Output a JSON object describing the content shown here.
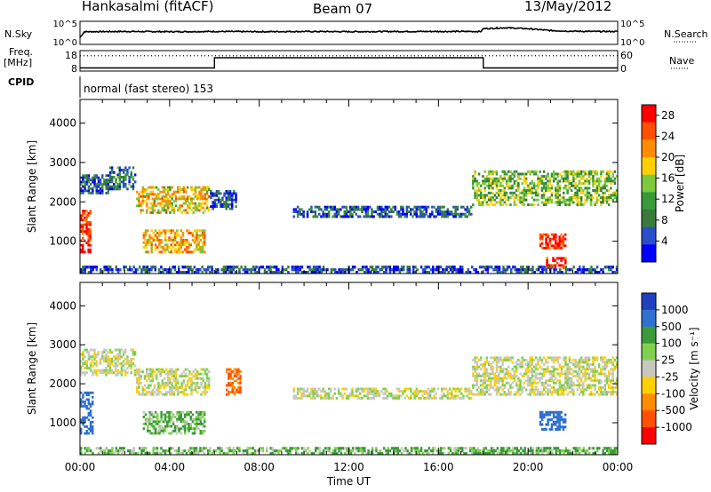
{
  "header": {
    "station": "Hankasalmi (fitACF)",
    "beam": "Beam 07",
    "date": "13/May/2012"
  },
  "left_labels": {
    "nsky": "N.Sky",
    "freq": "Freq.",
    "freq_unit": "[MHz]",
    "cpid": "CPID"
  },
  "right_labels": {
    "nsearch": "N.Search",
    "nave": "Nave"
  },
  "cpid_text": "normal (fast stereo) 153",
  "colors": {
    "frame": "#000000",
    "scatter_power": [
      "#0000ff",
      "#2a4fc8",
      "#3a7a3a",
      "#3a9a3a",
      "#7ec83c",
      "#ffd000",
      "#ff8c00",
      "#ff5000",
      "#ff0000"
    ],
    "velocity_colors": [
      "#2040c0",
      "#3070d0",
      "#3a9a3a",
      "#80d050",
      "#c8c8c0",
      "#ffd000",
      "#ff8c00",
      "#ff5000",
      "#ff0000"
    ]
  },
  "chart_data": [
    {
      "type": "line",
      "panel": "N.Sky / N.Search",
      "yticks": [
        "10^5",
        "10^0"
      ],
      "right_yticks": [
        "10^5",
        "10^0"
      ],
      "x_hours": [
        0,
        0.2,
        2,
        4,
        6,
        8,
        10,
        12,
        14,
        16,
        17.9,
        18,
        19,
        20,
        21,
        22,
        23,
        24
      ],
      "nsky_level": [
        0.3,
        0.55,
        0.56,
        0.55,
        0.56,
        0.55,
        0.56,
        0.55,
        0.56,
        0.56,
        0.56,
        0.68,
        0.72,
        0.68,
        0.6,
        0.57,
        0.56,
        0.56
      ]
    },
    {
      "type": "line",
      "panel": "Freq / Nave",
      "yticks": [
        "18",
        "8"
      ],
      "right_yticks": [
        "60",
        "0"
      ],
      "x_hours": [
        0,
        6,
        6,
        18,
        18,
        24
      ],
      "freq_level": [
        0.15,
        0.15,
        0.65,
        0.65,
        0.15,
        0.15
      ],
      "nave_dotted_level": 0.75
    },
    {
      "type": "heatmap",
      "panel": "Power",
      "ylabel": "Slant Range [km]",
      "yticks": [
        "1000",
        "2000",
        "3000",
        "4000"
      ],
      "ylim": [
        180,
        4600
      ],
      "colorbar_label": "Power [dB]",
      "colorbar_ticks": [
        "4",
        "8",
        "12",
        "16",
        "20",
        "24",
        "28"
      ],
      "clim": [
        0,
        30
      ],
      "echo_regions": [
        {
          "t0": 0.0,
          "t1": 0.5,
          "r0": 700,
          "r1": 1800,
          "level": 27
        },
        {
          "t0": 0.0,
          "t1": 1.3,
          "r0": 2200,
          "r1": 2700,
          "level": 6
        },
        {
          "t0": 1.3,
          "t1": 2.5,
          "r0": 2300,
          "r1": 2900,
          "level": 8
        },
        {
          "t0": 2.5,
          "t1": 5.8,
          "r0": 1700,
          "r1": 2400,
          "level": 18
        },
        {
          "t0": 2.8,
          "t1": 5.6,
          "r0": 700,
          "r1": 1300,
          "level": 20
        },
        {
          "t0": 5.8,
          "t1": 7.0,
          "r0": 1800,
          "r1": 2300,
          "level": 6
        },
        {
          "t0": 9.5,
          "t1": 17.5,
          "r0": 1600,
          "r1": 1900,
          "level": 6
        },
        {
          "t0": 17.5,
          "t1": 24.0,
          "r0": 1900,
          "r1": 2800,
          "level": 14
        },
        {
          "t0": 20.5,
          "t1": 21.7,
          "r0": 800,
          "r1": 1200,
          "level": 28
        },
        {
          "t0": 20.8,
          "t1": 21.8,
          "r0": 300,
          "r1": 600,
          "level": 28
        },
        {
          "t0": 0.0,
          "t1": 24.0,
          "r0": 180,
          "r1": 380,
          "level": 5
        }
      ]
    },
    {
      "type": "heatmap",
      "panel": "Velocity",
      "ylabel": "Slant Range [km]",
      "yticks": [
        "1000",
        "2000",
        "3000",
        "4000"
      ],
      "ylim": [
        180,
        4600
      ],
      "xlabel": "Time UT",
      "xticks": [
        "00:00",
        "04:00",
        "08:00",
        "12:00",
        "16:00",
        "20:00",
        "00:00"
      ],
      "colorbar_label": "Velocity [m s⁻¹]",
      "colorbar_ticks": [
        "1000",
        "500",
        "100",
        "25",
        "-25",
        "-100",
        "-500",
        "-1000"
      ],
      "echo_regions": [
        {
          "t0": 0.0,
          "t1": 0.6,
          "r0": 700,
          "r1": 1800,
          "vel": 400
        },
        {
          "t0": 0.0,
          "t1": 2.5,
          "r0": 2200,
          "r1": 2900,
          "vel": 0
        },
        {
          "t0": 2.5,
          "t1": 5.8,
          "r0": 1700,
          "r1": 2400,
          "vel": 0
        },
        {
          "t0": 2.8,
          "t1": 5.6,
          "r0": 700,
          "r1": 1300,
          "vel": 60
        },
        {
          "t0": 6.5,
          "t1": 7.2,
          "r0": 1700,
          "r1": 2400,
          "vel": -300
        },
        {
          "t0": 9.5,
          "t1": 17.5,
          "r0": 1600,
          "r1": 1900,
          "vel": 0
        },
        {
          "t0": 17.5,
          "t1": 24.0,
          "r0": 1700,
          "r1": 2700,
          "vel": 0
        },
        {
          "t0": 20.5,
          "t1": 21.7,
          "r0": 800,
          "r1": 1300,
          "vel": 400
        },
        {
          "t0": 0.0,
          "t1": 24.0,
          "r0": 180,
          "r1": 380,
          "vel": 60
        }
      ]
    }
  ]
}
